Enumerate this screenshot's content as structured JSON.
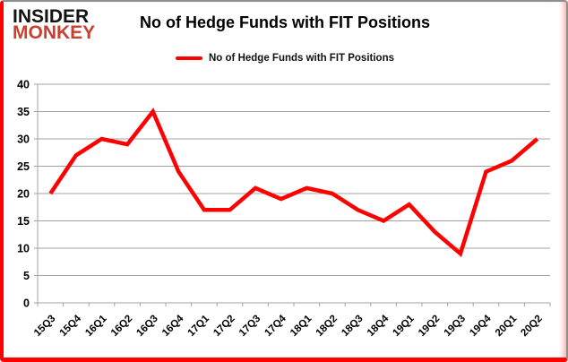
{
  "header": {
    "logo_line1": "INSIDER",
    "logo_line2": "MONKEY",
    "title": "No of Hedge Funds with FIT Positions"
  },
  "legend": {
    "label": "No of Hedge Funds with FIT Positions"
  },
  "colors": {
    "line": "#fe0000",
    "grid": "#a3a3a3",
    "axis_text": "#000000",
    "logo_black": "#141414",
    "logo_red": "#c8402f",
    "frame_red": "#fe0000",
    "frame_gray": "#8f8f8f"
  },
  "chart_data": {
    "type": "line",
    "title": "No of Hedge Funds with FIT Positions",
    "categories": [
      "15Q3",
      "15Q4",
      "16Q1",
      "16Q2",
      "16Q3",
      "16Q4",
      "17Q1",
      "17Q2",
      "17Q3",
      "17Q4",
      "18Q1",
      "18Q2",
      "18Q3",
      "18Q4",
      "19Q1",
      "19Q2",
      "19Q3",
      "19Q4",
      "20Q1",
      "20Q2"
    ],
    "series": [
      {
        "name": "No of Hedge Funds with FIT Positions",
        "values": [
          20,
          27,
          30,
          29,
          35,
          24,
          17,
          17,
          21,
          19,
          21,
          20,
          17,
          15,
          18,
          13,
          9,
          24,
          26,
          30
        ]
      }
    ],
    "xlabel": "",
    "ylabel": "",
    "ylim": [
      0,
      40
    ],
    "ytick_step": 5,
    "grid": true,
    "legend_position": "top"
  }
}
